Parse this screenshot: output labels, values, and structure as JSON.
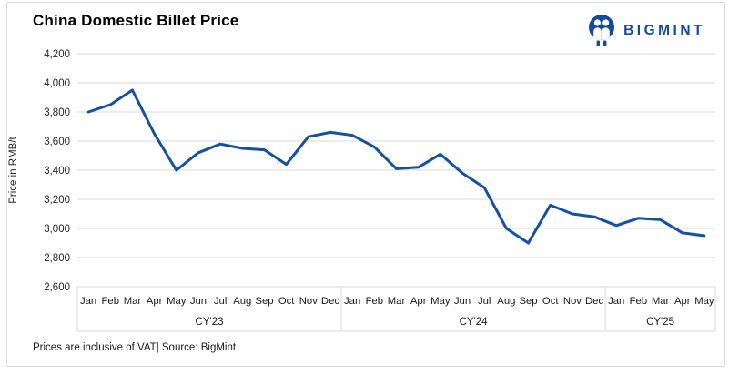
{
  "header": {
    "title": "China Domestic Billet Price",
    "logo_text": "BIGMINT"
  },
  "footer": {
    "note": "Prices are inclusive of VAT| Source: BigMint"
  },
  "colors": {
    "line": "#1450a4",
    "grid": "#d9d9d9",
    "tick_text": "#262626",
    "month_text": "#1a1a1a",
    "logo_blue": "#164a9f"
  },
  "chart_data": {
    "type": "line",
    "title": "China Domestic Billet Price",
    "ylabel": "Price in RMB/t",
    "ylim": [
      2600,
      4200
    ],
    "ytick_step": 200,
    "grid": "horizontal",
    "legend": "none",
    "year_groups": [
      {
        "label": "CY'23",
        "months": [
          "Jan",
          "Feb",
          "Mar",
          "Apr",
          "May",
          "Jun",
          "Jul",
          "Aug",
          "Sep",
          "Oct",
          "Nov",
          "Dec"
        ],
        "values": [
          3800,
          3850,
          3950,
          3650,
          3400,
          3520,
          3580,
          3550,
          3540,
          3440,
          3630,
          3660
        ]
      },
      {
        "label": "CY'24",
        "months": [
          "Jan",
          "Feb",
          "Mar",
          "Apr",
          "May",
          "Jun",
          "Jul",
          "Aug",
          "Sep",
          "Oct",
          "Nov",
          "Dec"
        ],
        "values": [
          3640,
          3560,
          3410,
          3420,
          3510,
          3380,
          3280,
          3000,
          2900,
          3160,
          3100,
          3080
        ]
      },
      {
        "label": "CY'25",
        "months": [
          "Jan",
          "Feb",
          "Mar",
          "Apr",
          "May"
        ],
        "values": [
          3020,
          3070,
          3060,
          2970,
          2950
        ]
      }
    ]
  }
}
